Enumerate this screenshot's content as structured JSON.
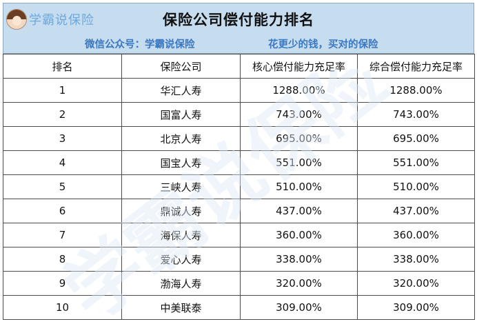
{
  "brand": {
    "label": "学霸说保险"
  },
  "title": "保险公司偿付能力排名",
  "subtitle": {
    "left": "微信公众号：学霸说保险",
    "right": "花更少的钱，买对的保险"
  },
  "watermark": {
    "text": "学霸说保险"
  },
  "colors": {
    "header_bg": "#c6dcef",
    "subtitle": "#3a78c2",
    "brand": "#6fa8dc"
  },
  "table": {
    "headers": [
      "排名",
      "保险公司",
      "核心偿付能力充足率",
      "综合偿付能力充足率"
    ],
    "rows": [
      [
        "1",
        "华汇人寿",
        "1288.00%",
        "1288.00%"
      ],
      [
        "2",
        "国富人寿",
        "743.00%",
        "743.00%"
      ],
      [
        "3",
        "北京人寿",
        "695.00%",
        "695.00%"
      ],
      [
        "4",
        "国宝人寿",
        "551.00%",
        "551.00%"
      ],
      [
        "5",
        "三峡人寿",
        "510.00%",
        "510.00%"
      ],
      [
        "6",
        "鼎诚人寿",
        "437.00%",
        "437.00%"
      ],
      [
        "7",
        "海保人寿",
        "360.00%",
        "360.00%"
      ],
      [
        "8",
        "爱心人寿",
        "338.00%",
        "338.00%"
      ],
      [
        "9",
        "渤海人寿",
        "320.00%",
        "320.00%"
      ],
      [
        "10",
        "中美联泰",
        "309.00%",
        "309.00%"
      ]
    ]
  }
}
